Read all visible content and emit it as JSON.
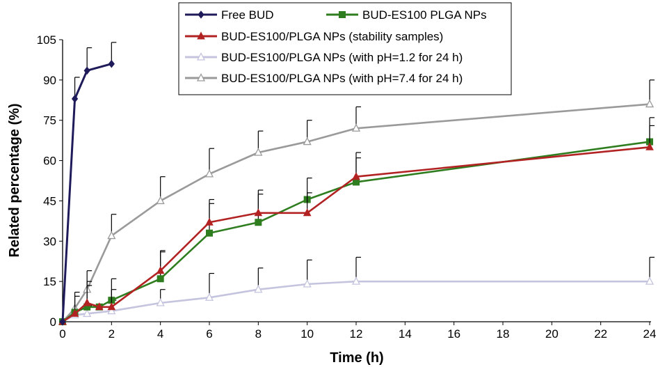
{
  "chart_data": {
    "type": "line",
    "xlabel": "Time (h)",
    "ylabel": "Related percentage (%)",
    "xlim": [
      0,
      24
    ],
    "ylim": [
      0,
      105
    ],
    "xticks": [
      0,
      2,
      4,
      6,
      8,
      10,
      12,
      14,
      16,
      18,
      20,
      22,
      24
    ],
    "yticks": [
      0,
      15,
      30,
      45,
      60,
      75,
      90,
      105
    ],
    "grid": false,
    "legend_position": "top-center",
    "series": [
      {
        "name": "Free BUD",
        "color": "#1f1a5a",
        "marker": "diamond-filled",
        "x": [
          0,
          0.5,
          1,
          2
        ],
        "y": [
          0,
          83,
          93.5,
          96
        ],
        "err": [
          0,
          8,
          8.5,
          8
        ]
      },
      {
        "name": "BUD-ES100 PLGA NPs",
        "color": "#2e7d1f",
        "marker": "square-filled",
        "x": [
          0,
          0.5,
          1,
          1.5,
          2,
          4,
          6,
          8,
          10,
          12,
          24
        ],
        "y": [
          0,
          3.5,
          5.5,
          5.5,
          8,
          16,
          33,
          37,
          45.5,
          52,
          67
        ],
        "err": [
          0,
          7.5,
          9.5,
          0,
          8,
          10.5,
          12.5,
          12,
          8,
          11,
          9
        ]
      },
      {
        "name": "BUD-ES100/PLGA NPs (stability samples)",
        "color": "#b22222",
        "marker": "triangle-filled",
        "x": [
          0,
          0.5,
          1,
          1.5,
          2,
          4,
          6,
          8,
          10,
          12,
          24
        ],
        "y": [
          0,
          3,
          7,
          5.5,
          5.5,
          19,
          37,
          40.5,
          40.5,
          54,
          65
        ],
        "err": [
          0,
          6.5,
          6.5,
          0,
          6.5,
          7,
          7,
          7,
          7.5,
          7,
          8
        ]
      },
      {
        "name": "BUD-ES100/PLGA NPs (with pH=1.2 for 24 h)",
        "color": "#c4c4de",
        "marker": "triangle-open",
        "x": [
          0,
          0.5,
          1,
          2,
          4,
          6,
          8,
          10,
          12,
          24
        ],
        "y": [
          0,
          2.5,
          3,
          4,
          7,
          9,
          12,
          14,
          15,
          15
        ],
        "err": [
          0,
          0,
          3,
          4,
          5,
          9,
          8,
          9,
          9,
          9
        ]
      },
      {
        "name": "BUD-ES100/PLGA NPs (with pH=7.4 for 24 h)",
        "color": "#9a9a9a",
        "marker": "triangle-open",
        "x": [
          0,
          0.5,
          1,
          2,
          4,
          6,
          8,
          10,
          12,
          24
        ],
        "y": [
          0,
          5,
          12,
          32,
          45,
          55,
          63,
          67,
          72,
          81
        ],
        "err": [
          0,
          0,
          7,
          8,
          9,
          9.5,
          8,
          8,
          8,
          9
        ]
      }
    ]
  }
}
